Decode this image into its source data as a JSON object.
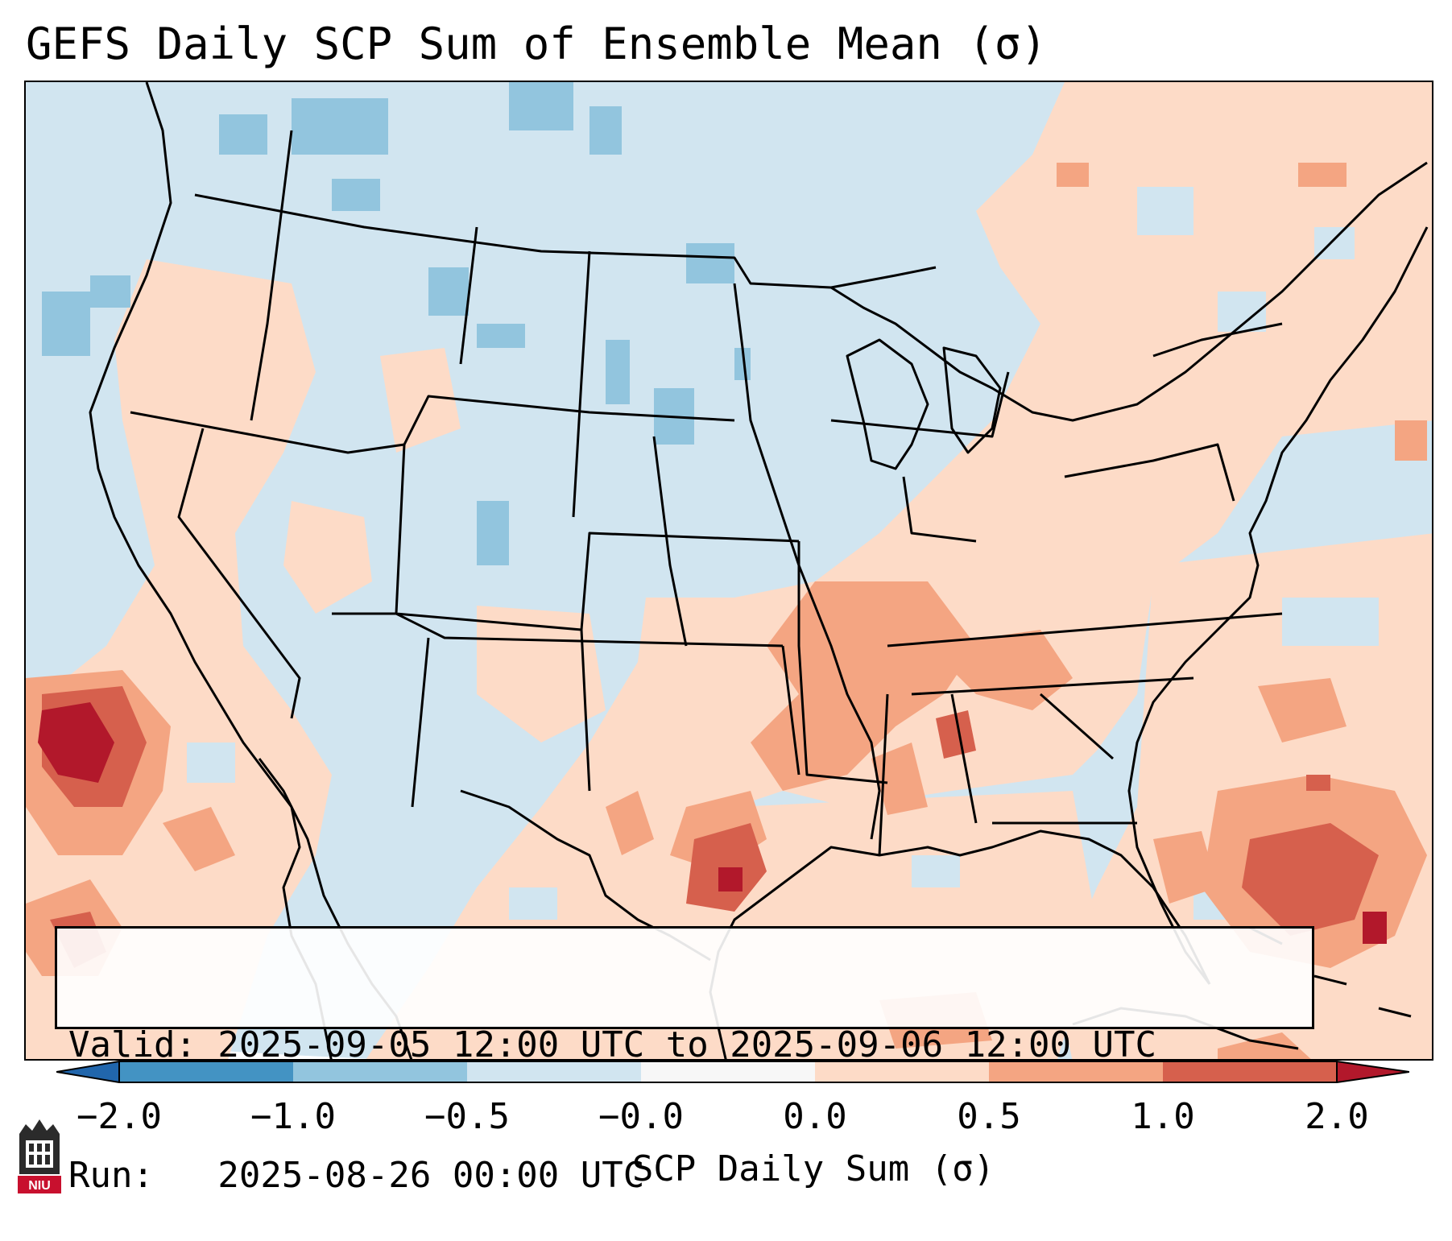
{
  "title": "GEFS Daily SCP Sum of Ensemble Mean (σ)",
  "info": {
    "valid": "Valid: 2025-09-05 12:00 UTC to 2025-09-06 12:00 UTC",
    "run": "Run:   2025-08-26 00:00 UTC"
  },
  "colorbar": {
    "label": "SCP Daily Sum (σ)",
    "ticks": [
      "−2.0",
      "−1.0",
      "−0.5",
      "−0.0",
      "0.0",
      "0.5",
      "1.0",
      "2.0"
    ],
    "colors": [
      "#2166ac",
      "#4393c3",
      "#92c5de",
      "#d1e5f0",
      "#f7f7f7",
      "#fddbc7",
      "#f4a582",
      "#d6604d",
      "#b2182b"
    ],
    "extend": "both"
  },
  "map": {
    "projection": "Lambert Conformal",
    "region": "Contiguous United States",
    "background_color": "#d1e5f0",
    "hotspots": [
      {
        "region": "Eastern Pacific west of Baja California",
        "level_sigma": 2.0
      },
      {
        "region": "Southeast Texas near Houston",
        "level_sigma": 1.5
      },
      {
        "region": "Western Atlantic east of Florida",
        "level_sigma": 1.5
      },
      {
        "region": "Lower Mississippi Valley / Tennessee Valley",
        "level_sigma": 1.0
      },
      {
        "region": "Gulf of Mexico",
        "level_sigma": 0.5
      }
    ]
  },
  "logo": {
    "text": "NIU",
    "color": "#c8102e"
  }
}
